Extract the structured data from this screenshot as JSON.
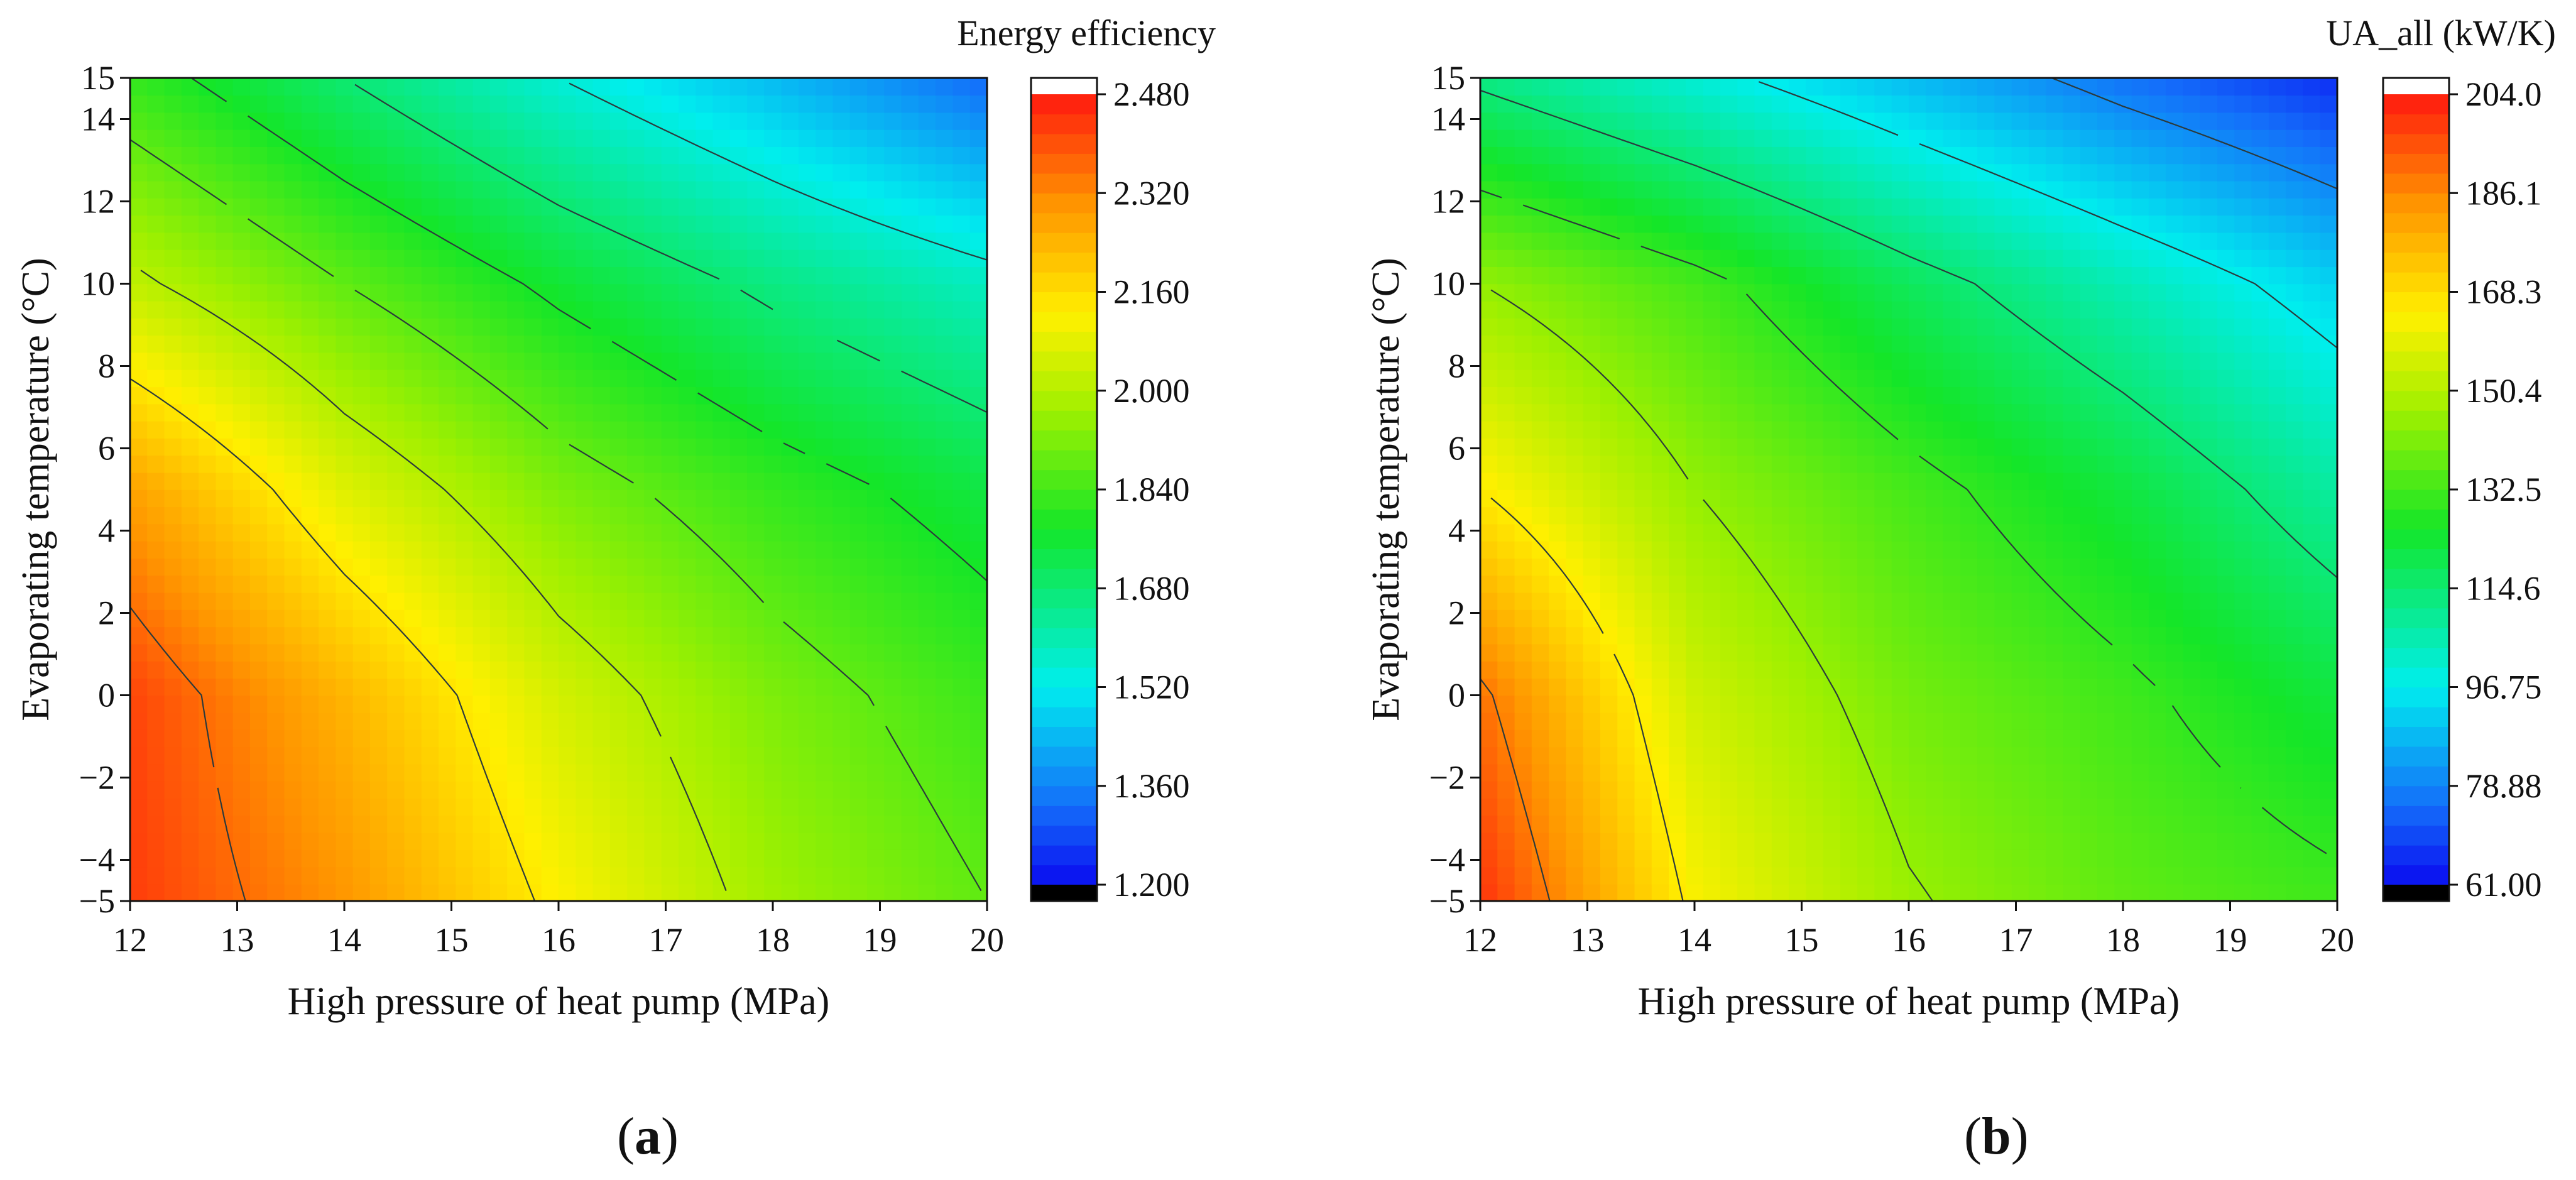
{
  "chart_data": [
    {
      "type": "heatmap",
      "panel_label": "a",
      "colorbar_title": "Energy efficiency",
      "xlabel": "High pressure of heat pump (MPa)",
      "ylabel": "Evaporating temperature (°C)",
      "xlim": [
        12,
        20
      ],
      "ylim": [
        -5,
        15
      ],
      "x_ticks": [
        "12",
        "13",
        "14",
        "15",
        "16",
        "17",
        "18",
        "19",
        "20"
      ],
      "y_ticks": [
        "−5",
        "−4",
        "−2",
        "0",
        "2",
        "4",
        "6",
        "8",
        "10",
        "12",
        "14",
        "15"
      ],
      "colorbar_range": [
        1.2,
        2.48
      ],
      "colorbar_ticks": [
        "2.480",
        "2.320",
        "2.160",
        "2.000",
        "1.840",
        "1.680",
        "1.520",
        "1.360",
        "1.200"
      ],
      "grid": {
        "x": [
          12,
          14,
          16,
          18,
          20
        ],
        "y": [
          -5,
          0,
          5,
          10,
          15
        ],
        "z": [
          [
            2.43,
            2.3,
            2.12,
            1.97,
            1.88
          ],
          [
            2.42,
            2.24,
            2.05,
            1.92,
            1.83
          ],
          [
            2.28,
            2.07,
            1.92,
            1.82,
            1.74
          ],
          [
            2.02,
            1.88,
            1.76,
            1.66,
            1.58
          ],
          [
            1.82,
            1.68,
            1.55,
            1.44,
            1.32
          ]
        ]
      },
      "contour_levels": [
        1.55,
        1.68,
        1.78,
        1.88,
        2.0,
        2.14,
        2.36
      ]
    },
    {
      "type": "heatmap",
      "panel_label": "b",
      "colorbar_title": "UA_all (kW/K)",
      "xlabel": "High pressure of heat pump (MPa)",
      "ylabel": "Evaporating temperature (°C)",
      "xlim": [
        12,
        20
      ],
      "ylim": [
        -5,
        15
      ],
      "x_ticks": [
        "12",
        "13",
        "14",
        "15",
        "16",
        "17",
        "18",
        "19",
        "20"
      ],
      "y_ticks": [
        "−5",
        "−4",
        "−2",
        "0",
        "2",
        "4",
        "6",
        "8",
        "10",
        "12",
        "14",
        "15"
      ],
      "colorbar_range": [
        61.0,
        204.0
      ],
      "colorbar_ticks": [
        "204.0",
        "186.1",
        "168.3",
        "150.4",
        "132.5",
        "114.6",
        "96.75",
        "78.88",
        "61.00"
      ],
      "grid": {
        "x": [
          12,
          14,
          16,
          18,
          20
        ],
        "y": [
          -5,
          0,
          5,
          10,
          15
        ],
        "z": [
          [
            200.0,
            163.0,
            146.0,
            137.0,
            132.0
          ],
          [
            190.0,
            155.0,
            140.0,
            132.0,
            122.0
          ],
          [
            165.0,
            145.0,
            133.0,
            122.0,
            108.0
          ],
          [
            145.0,
            133.0,
            118.0,
            105.0,
            92.0
          ],
          [
            112.0,
            100.0,
            88.0,
            76.0,
            66.0
          ]
        ]
      },
      "contour_levels": [
        80.0,
        97.0,
        114.0,
        130.0,
        145.0,
        165.0,
        188.0
      ]
    }
  ]
}
